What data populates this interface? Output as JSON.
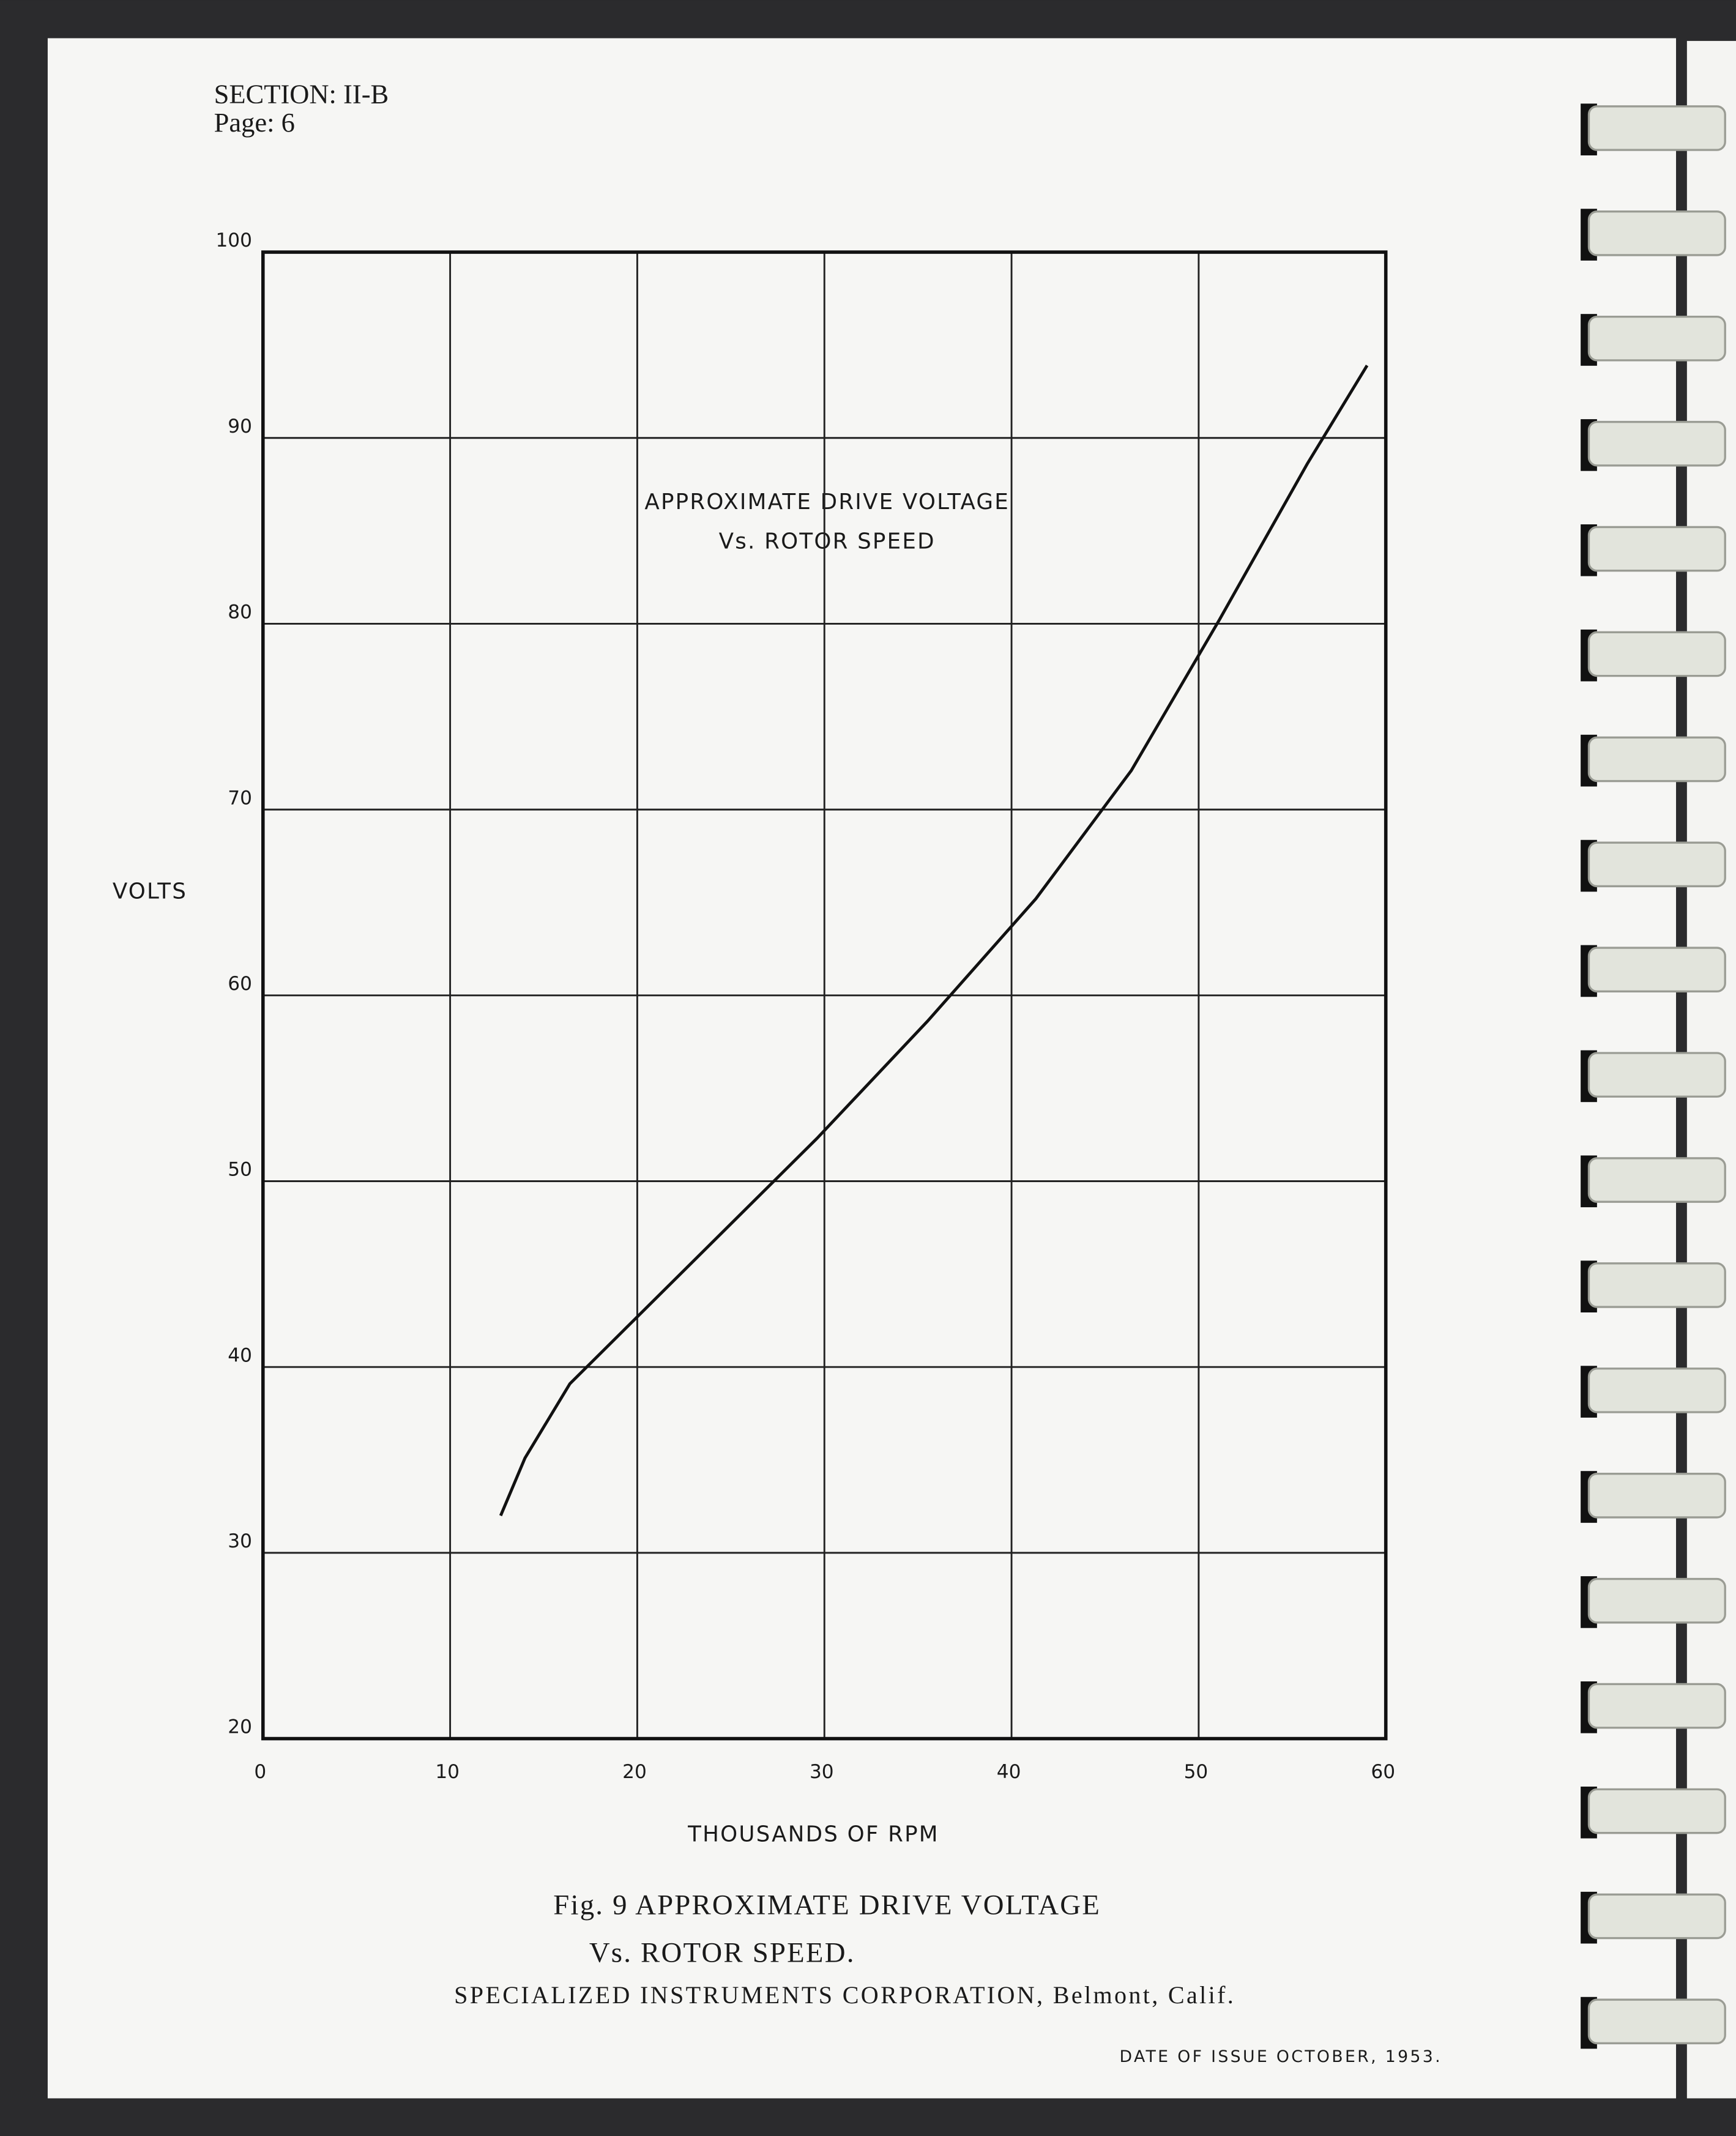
{
  "header": {
    "section": "SECTION:  II-B",
    "page": "Page:  6"
  },
  "chart_data": {
    "type": "line",
    "title": "APPROXIMATE DRIVE VOLTAGE",
    "subtitle": "Vs. ROTOR SPEED",
    "x_label": "THOUSANDS OF RPM",
    "y_label": "VOLTS",
    "x": [
      12.7,
      14.0,
      16.4,
      19.4,
      24.5,
      29.6,
      35.5,
      41.3,
      46.4,
      51.1,
      55.8,
      59.0
    ],
    "values": [
      32.0,
      35.1,
      39.1,
      42.1,
      47.2,
      52.3,
      58.6,
      65.2,
      72.1,
      80.2,
      88.6,
      93.9
    ],
    "color": "#111111",
    "xlim": [
      0,
      60
    ],
    "xticks": [
      0,
      10,
      20,
      30,
      40,
      50,
      60
    ],
    "ylim": [
      20,
      100
    ],
    "yticks": [
      20,
      30,
      40,
      50,
      60,
      70,
      80,
      90,
      100
    ],
    "grid": true
  },
  "caption": {
    "line1": "Fig. 9 APPROXIMATE DRIVE VOLTAGE",
    "line2": "Vs. ROTOR SPEED."
  },
  "company": "SPECIALIZED INSTRUMENTS CORPORATION, Belmont, Calif.",
  "date": "DATE OF ISSUE OCTOBER, 1953."
}
